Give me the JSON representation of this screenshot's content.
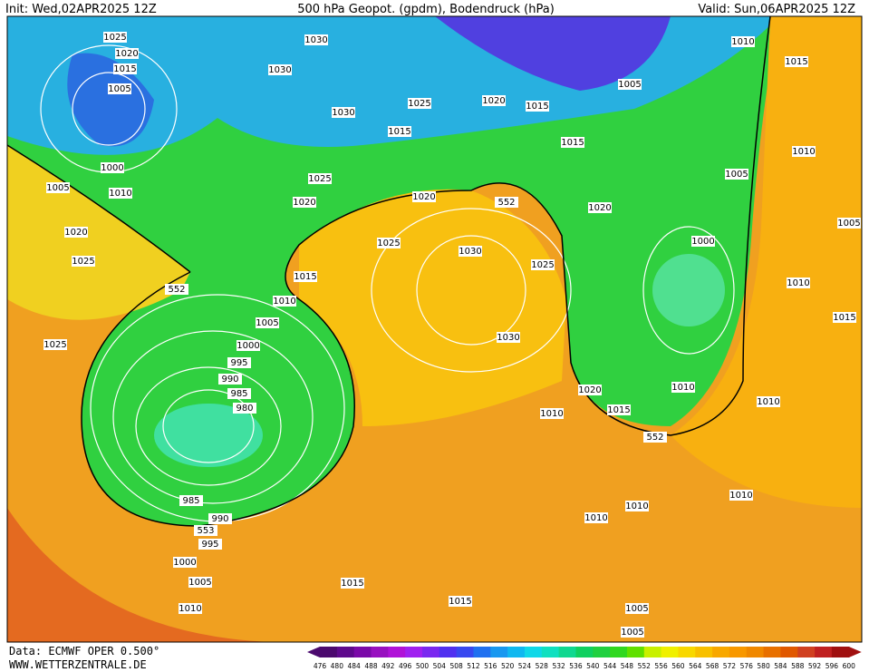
{
  "header": {
    "init": "Init: Wed,02APR2025 12Z",
    "title": "500 hPa Geopot. (gpdm), Bodendruck (hPa)",
    "valid": "Valid: Sun,06APR2025 12Z"
  },
  "isobar_labels": [
    "1025",
    "1020",
    "1015",
    "1005",
    "1000",
    "1005",
    "1010",
    "1020",
    "1025",
    "1025",
    "1030",
    "1030",
    "1030",
    "1025",
    "1015",
    "1025",
    "1020",
    "1020",
    "1025",
    "1030",
    "1025",
    "1015",
    "1010",
    "1005",
    "1000",
    "995",
    "990",
    "985",
    "980",
    "985",
    "990",
    "995",
    "1000",
    "1005",
    "1010",
    "1015",
    "1015",
    "1030",
    "1020",
    "1015",
    "1015",
    "1020",
    "1000",
    "1010",
    "1015",
    "1020",
    "1010",
    "1010",
    "1010",
    "1010",
    "1010",
    "1010",
    "1015",
    "1005",
    "1010",
    "1005",
    "1015",
    "1010",
    "1005",
    "1005",
    "1005",
    "552",
    "552",
    "552",
    "553"
  ],
  "footer": {
    "source": "Data: ECMWF OPER 0.500°",
    "site": "WWW.WETTERZENTRALE.DE"
  },
  "legend": {
    "ticks": [
      476,
      480,
      484,
      488,
      492,
      496,
      500,
      504,
      508,
      512,
      516,
      520,
      524,
      528,
      532,
      536,
      540,
      544,
      548,
      552,
      556,
      560,
      564,
      568,
      572,
      576,
      580,
      584,
      588,
      592,
      596,
      600
    ],
    "colors": [
      "#4b0a6e",
      "#5e0a8c",
      "#7a0aa8",
      "#9810c0",
      "#b012d8",
      "#a020f0",
      "#7a28f0",
      "#5030f0",
      "#3848f0",
      "#2070f0",
      "#1898f0",
      "#10b8f0",
      "#10d8e8",
      "#10e0c0",
      "#10d890",
      "#10d060",
      "#20d040",
      "#30d820",
      "#60e000",
      "#c8f000",
      "#f0f000",
      "#f8d800",
      "#f8c000",
      "#f8a800",
      "#f89800",
      "#f08800",
      "#e87000",
      "#e05800",
      "#d04020",
      "#c02020",
      "#a01010"
    ]
  }
}
